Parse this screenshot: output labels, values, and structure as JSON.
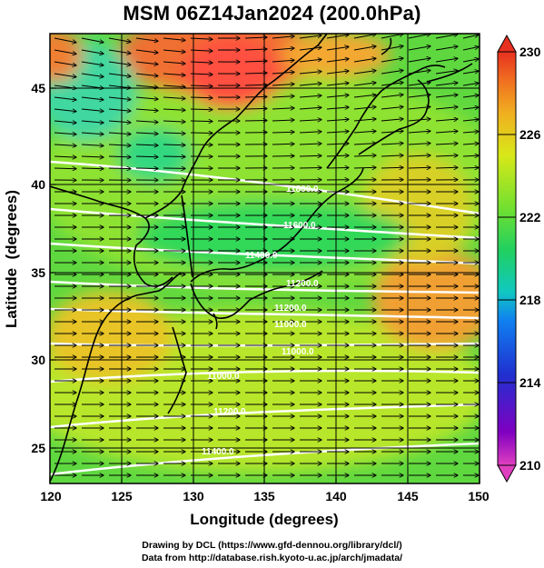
{
  "title": "MSM 06Z14Jan2024 (200.0hPa)",
  "x_axis": {
    "label": "Longitude (degrees)",
    "range": [
      120,
      150
    ],
    "ticks": [
      "120",
      "125",
      "130",
      "135",
      "140",
      "145",
      "150"
    ]
  },
  "y_axis": {
    "label": "Latitude  (degrees)",
    "range": [
      22.4,
      47.6
    ],
    "ticks": [
      "25",
      "30",
      "35",
      "40",
      "45"
    ]
  },
  "colorbar": {
    "range": [
      210,
      230
    ],
    "ticks": [
      "210",
      "214",
      "218",
      "222",
      "226",
      "230"
    ],
    "colors": [
      "#e040c0",
      "#8000c0",
      "#2030d0",
      "#1080f0",
      "#10c8c0",
      "#20d060",
      "#70e030",
      "#d8e818",
      "#f0b020",
      "#f07020",
      "#e83020"
    ]
  },
  "contour_labels": [
    "11800.0",
    "11600.0",
    "11400.0",
    "11200.0",
    "11200.0",
    "11000.0",
    "11000.0",
    "11000.0",
    "11200.0",
    "11400.0"
  ],
  "credits": {
    "line1": "Drawing by DCL (https://www.gfd-dennou.org/library/dcl/)",
    "line2": "Data from http://database.rish.kyoto-u.ac.jp/arch/jmadata/"
  }
}
